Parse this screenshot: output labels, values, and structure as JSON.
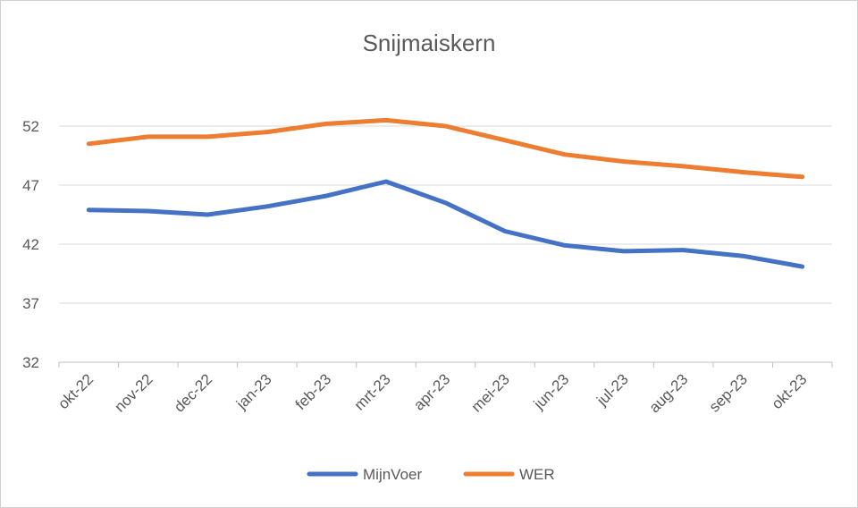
{
  "chart_data": {
    "type": "line",
    "title": "Snijmaiskern",
    "xlabel": "",
    "ylabel": "",
    "categories": [
      "okt-22",
      "nov-22",
      "dec-22",
      "jan-23",
      "feb-23",
      "mrt-23",
      "apr-23",
      "mei-23",
      "jun-23",
      "jul-23",
      "aug-23",
      "sep-23",
      "okt-23"
    ],
    "yticks": [
      32,
      37,
      42,
      47,
      52
    ],
    "ylim": [
      32,
      57
    ],
    "grid": true,
    "legend_position": "bottom",
    "series": [
      {
        "name": "MijnVoer",
        "color": "#4472C4",
        "values": [
          44.9,
          44.8,
          44.5,
          45.2,
          46.1,
          47.3,
          45.5,
          43.1,
          41.9,
          41.4,
          41.5,
          41.0,
          40.1
        ]
      },
      {
        "name": "WER",
        "color": "#ED7D31",
        "values": [
          50.5,
          51.1,
          51.1,
          51.5,
          52.2,
          52.5,
          52.0,
          50.8,
          49.6,
          49.0,
          48.6,
          48.1,
          47.7
        ]
      }
    ]
  }
}
